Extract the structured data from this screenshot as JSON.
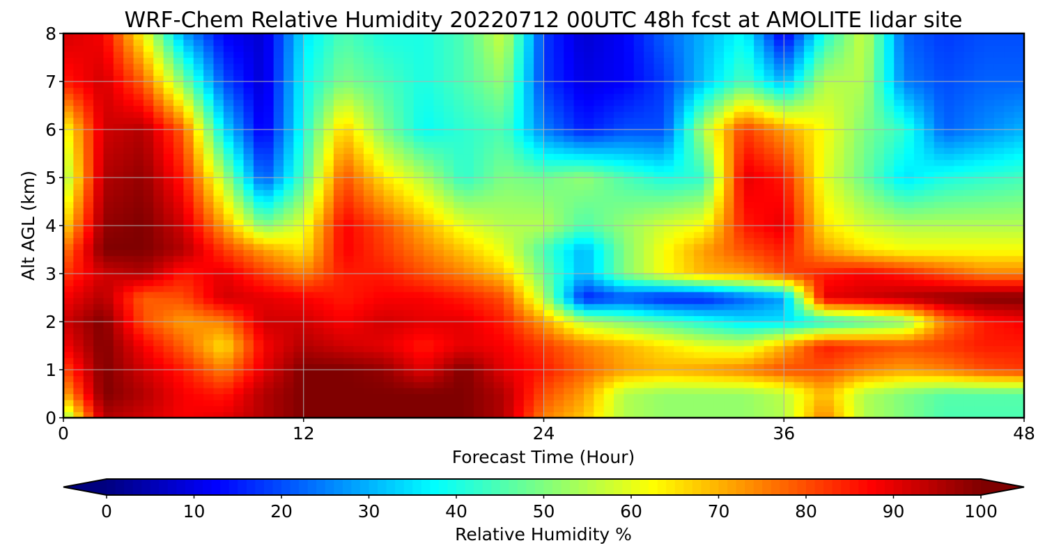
{
  "chart_data": {
    "type": "heatmap",
    "title": "WRF-Chem Relative Humidity 20220712 00UTC 48h fcst at AMOLITE lidar site",
    "xlabel": "Forecast Time (Hour)",
    "ylabel": "Alt AGL (km)",
    "xlim": [
      0,
      48
    ],
    "ylim": [
      0,
      8
    ],
    "x_ticks": [
      "0",
      "12",
      "24",
      "36",
      "48"
    ],
    "y_ticks": [
      "0",
      "1",
      "2",
      "3",
      "4",
      "5",
      "6",
      "7",
      "8"
    ],
    "grid": true,
    "colormap": "jet",
    "colorbar": {
      "label": "Relative Humidity %",
      "range": [
        0,
        100
      ],
      "ticks": [
        "0",
        "10",
        "20",
        "30",
        "40",
        "50",
        "60",
        "70",
        "80",
        "90",
        "100"
      ],
      "extend": "both",
      "under_color": "#00007f",
      "over_color": "#7f0000"
    },
    "x": [
      0,
      2,
      4,
      6,
      8,
      10,
      12,
      14,
      16,
      18,
      20,
      22,
      24,
      26,
      28,
      30,
      32,
      34,
      36,
      38,
      40,
      42,
      44,
      46,
      48
    ],
    "y": [
      0,
      0.5,
      1,
      1.5,
      2,
      2.5,
      3,
      3.5,
      4,
      5,
      6,
      7,
      8
    ],
    "values": [
      [
        50,
        95,
        92,
        88,
        90,
        95,
        100,
        100,
        100,
        100,
        100,
        95,
        75,
        68,
        55,
        52,
        52,
        52,
        55,
        75,
        55,
        50,
        45,
        45,
        45
      ],
      [
        70,
        100,
        95,
        88,
        85,
        95,
        100,
        100,
        100,
        100,
        100,
        95,
        80,
        72,
        55,
        52,
        52,
        52,
        56,
        70,
        55,
        50,
        46,
        46,
        46
      ],
      [
        80,
        100,
        92,
        85,
        75,
        90,
        100,
        100,
        98,
        90,
        100,
        90,
        85,
        78,
        72,
        70,
        72,
        75,
        80,
        80,
        75,
        72,
        75,
        80,
        82
      ],
      [
        88,
        100,
        88,
        78,
        65,
        88,
        95,
        92,
        90,
        85,
        90,
        88,
        82,
        75,
        70,
        65,
        60,
        58,
        70,
        85,
        82,
        80,
        82,
        85,
        85
      ],
      [
        92,
        100,
        80,
        72,
        75,
        92,
        92,
        88,
        92,
        90,
        90,
        85,
        72,
        55,
        50,
        45,
        40,
        35,
        35,
        40,
        45,
        50,
        75,
        85,
        88
      ],
      [
        88,
        95,
        78,
        80,
        92,
        90,
        88,
        85,
        88,
        88,
        85,
        80,
        55,
        15,
        20,
        15,
        15,
        22,
        28,
        90,
        92,
        95,
        98,
        100,
        100
      ],
      [
        82,
        92,
        95,
        85,
        90,
        82,
        75,
        85,
        85,
        80,
        75,
        68,
        48,
        30,
        50,
        62,
        70,
        72,
        80,
        85,
        88,
        85,
        80,
        75,
        75
      ],
      [
        75,
        100,
        100,
        95,
        82,
        72,
        65,
        88,
        82,
        75,
        68,
        60,
        45,
        30,
        50,
        62,
        72,
        80,
        85,
        72,
        65,
        62,
        62,
        62,
        62
      ],
      [
        65,
        98,
        100,
        92,
        72,
        50,
        60,
        88,
        80,
        70,
        60,
        55,
        55,
        45,
        52,
        58,
        62,
        85,
        90,
        65,
        58,
        55,
        55,
        55,
        55
      ],
      [
        52,
        95,
        98,
        85,
        55,
        20,
        45,
        80,
        65,
        55,
        42,
        50,
        48,
        52,
        45,
        40,
        42,
        90,
        85,
        60,
        48,
        35,
        40,
        42,
        44
      ],
      [
        60,
        92,
        95,
        78,
        35,
        10,
        40,
        68,
        50,
        38,
        42,
        45,
        25,
        15,
        20,
        20,
        55,
        82,
        72,
        62,
        50,
        42,
        22,
        26,
        30
      ],
      [
        85,
        92,
        78,
        50,
        20,
        8,
        38,
        50,
        45,
        40,
        45,
        52,
        18,
        10,
        12,
        18,
        32,
        45,
        30,
        55,
        55,
        25,
        20,
        22,
        22
      ],
      [
        92,
        88,
        62,
        28,
        12,
        8,
        35,
        45,
        40,
        40,
        45,
        58,
        18,
        8,
        12,
        22,
        30,
        38,
        10,
        40,
        58,
        22,
        18,
        20,
        20
      ]
    ]
  }
}
